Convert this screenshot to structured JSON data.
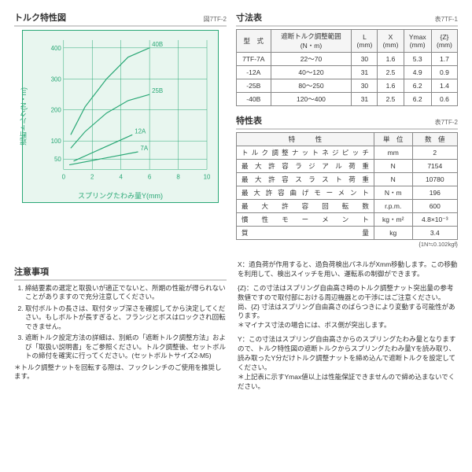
{
  "chart": {
    "title": "トルク特性図",
    "fig_label": "図7TF-2",
    "xlabel": "スプリングたわみ量Y(mm)",
    "ylabel": "遮断トルク(N・m)",
    "xlim": [
      0,
      10
    ],
    "ylim": [
      0,
      420
    ],
    "y_ticks": [
      50,
      100,
      200,
      300,
      400
    ],
    "y_tick_labels": [
      "50",
      "100",
      "200",
      "300",
      "400"
    ],
    "x_ticks": [
      0,
      2,
      4,
      6,
      8,
      10
    ],
    "bg": "#e8f6ef",
    "line_color": "#2aa876",
    "series": [
      {
        "label": "7A",
        "pts": [
          [
            0.4,
            22
          ],
          [
            5.2,
            70
          ]
        ]
      },
      {
        "label": "12A",
        "pts": [
          [
            0.7,
            40
          ],
          [
            4.8,
            120
          ]
        ]
      },
      {
        "label": "25B",
        "pts": [
          [
            0.5,
            80
          ],
          [
            1.5,
            130
          ],
          [
            3.0,
            190
          ],
          [
            4.5,
            230
          ],
          [
            6.0,
            250
          ]
        ]
      },
      {
        "label": "40B",
        "pts": [
          [
            0.5,
            120
          ],
          [
            1.5,
            210
          ],
          [
            3.0,
            300
          ],
          [
            4.5,
            370
          ],
          [
            6.0,
            400
          ]
        ]
      }
    ]
  },
  "dim_table": {
    "title": "寸法表",
    "fig_label": "表7TF-1",
    "headers": [
      "型　式",
      "遮断トルク調整範囲\n(N・m)",
      "L\n(mm)",
      "X\n(mm)",
      "Ymax\n(mm)",
      "{Z}\n(mm)"
    ],
    "rows": [
      [
        "7TF-7A",
        "22～70",
        "30",
        "1.6",
        "5.3",
        "1.7"
      ],
      [
        "-12A",
        "40～120",
        "31",
        "2.5",
        "4.9",
        "0.9"
      ],
      [
        "-25B",
        "80～250",
        "30",
        "1.6",
        "6.2",
        "1.4"
      ],
      [
        "-40B",
        "120～400",
        "31",
        "2.5",
        "6.2",
        "0.6"
      ]
    ]
  },
  "char_table": {
    "title": "特性表",
    "fig_label": "表7TF-2",
    "headers": [
      "特　　　性",
      "単　位",
      "数　値"
    ],
    "rows": [
      [
        "トルク調整ナットネジピッチ",
        "mm",
        "2"
      ],
      [
        "最大許容ラジアル荷重",
        "N",
        "7154"
      ],
      [
        "最大許容スラスト荷重",
        "N",
        "10780"
      ],
      [
        "最大許容曲げモーメント",
        "N・m",
        "196"
      ],
      [
        "最 大 許 容 回 転 数",
        "r.p.m.",
        "600"
      ],
      [
        "慣 性 モ ー メ ン ト",
        "kg・m²",
        "4.8×10⁻³"
      ],
      [
        "質　　　　量",
        "kg",
        "3.4"
      ]
    ],
    "footnote": "{1N≒0.102kgf}"
  },
  "notes": {
    "title": "注意事項",
    "items": [
      "締結要素の選定と取扱いが適正でないと、所期の性能が得られないことがありますので充分注意してください。",
      "取付ボルトの長さは、取付タップ深さを確認してから決定してください。もしボルトが長すぎると、フランジとボスはロックされ回転できません。",
      "遮断トルク設定方法の詳細は、別紙の「遮断トルク調整方法」および「取扱い説明書」をご参照ください。トルク調整後、セットボルトの締付を確実に行ってください。(セットボルトサイズ2-M5)"
    ],
    "foot": "＊トルク調整ナットを回転する際は、フックレンチのご使用を推奨します。"
  },
  "legend": {
    "x": "X：過負荷が作用すると、過負荷検出パネルがXmm移動します。この移動を利用して、検出スイッチを用い、運転系の制御ができます。",
    "z": "{Z}：この寸法はスプリング自由高さ時のトルク調整ナット突出量の参考数値ですので取付部における周辺機器との干渉にはご注意ください。尚、{Z} 寸法はスプリング自由高さのばらつきにより変動する可能性があります。\n＊マイナス寸法の場合には、ボス側が突出します。",
    "y": "Y：この寸法はスプリング自由高さからのスプリングたわみ量となりますので、トルク特性図の遮断トルクからスプリングたわみ量Yを読み取り、読み取ったY分だけトルク調整ナットを締め込んで遮断トルクを設定してください。\n＊上記表に示すYmax値以上は性能保証できませんので締め込まないでください。"
  }
}
